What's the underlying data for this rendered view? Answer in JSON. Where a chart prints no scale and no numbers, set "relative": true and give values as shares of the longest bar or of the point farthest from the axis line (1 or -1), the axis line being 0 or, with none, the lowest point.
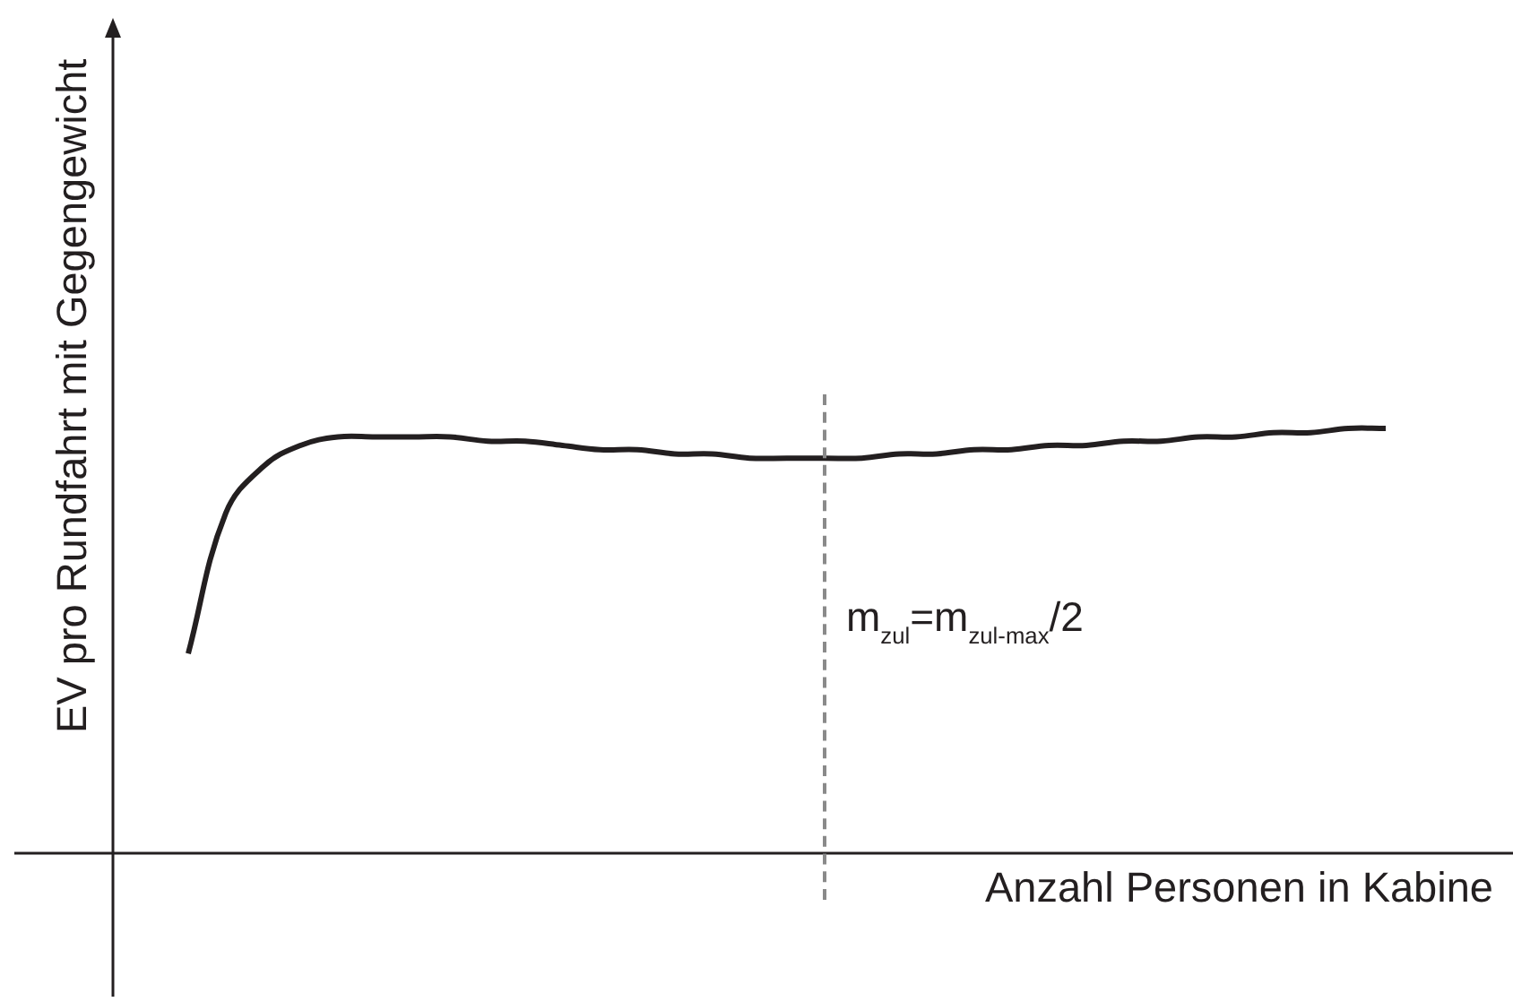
{
  "chart_data": {
    "type": "line",
    "xlabel": "Anzahl Personen in Kabine",
    "ylabel": "EV pro Rundfahrt mit Gegengewicht",
    "categories": [
      null,
      null,
      null,
      null,
      null,
      null,
      null,
      null,
      null,
      null,
      null,
      null,
      null,
      null,
      null,
      null,
      null,
      null,
      null,
      null,
      null,
      null,
      null,
      null,
      null,
      null,
      null,
      null,
      null,
      null,
      null,
      null,
      null
    ],
    "values": [
      0.47,
      0.8,
      0.91,
      0.96,
      0.98,
      0.98,
      0.98,
      0.98,
      0.97,
      0.97,
      0.96,
      0.95,
      0.95,
      0.94,
      0.94,
      0.93,
      0.93,
      0.93,
      0.93,
      0.94,
      0.94,
      0.95,
      0.95,
      0.96,
      0.96,
      0.97,
      0.97,
      0.98,
      0.98,
      0.99,
      0.99,
      1.0,
      1.0
    ],
    "color": "#231f20",
    "relative": true,
    "marker": "none",
    "line_style": "solid",
    "annotations": [
      "m$_{zul}$=m$_{zul-max}$/2"
    ]
  }
}
